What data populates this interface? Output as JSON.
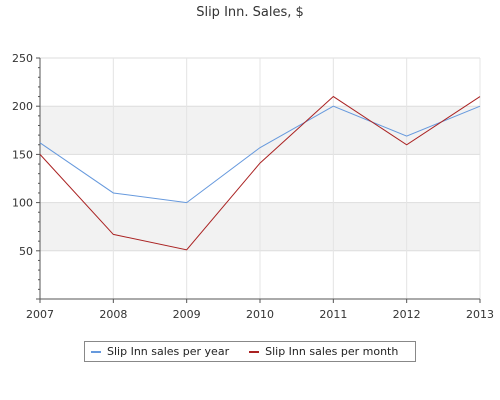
{
  "chart_data": {
    "type": "line",
    "title": "Slip Inn. Sales, $",
    "xlabel": "",
    "ylabel": "",
    "categories": [
      "2007",
      "2008",
      "2009",
      "2010",
      "2011",
      "2012",
      "2013"
    ],
    "ylim": [
      0,
      250
    ],
    "yticks": [
      "50",
      "100",
      "150",
      "200",
      "250"
    ],
    "grid": true,
    "legend_position": "bottom",
    "series": [
      {
        "name": "Slip Inn sales per year",
        "color": "#6699dd",
        "values": [
          162,
          110,
          100,
          157,
          200,
          169,
          200
        ]
      },
      {
        "name": "Slip Inn sales per month",
        "color": "#aa2222",
        "values": [
          150,
          67,
          51,
          141,
          210,
          160,
          210
        ]
      }
    ]
  }
}
